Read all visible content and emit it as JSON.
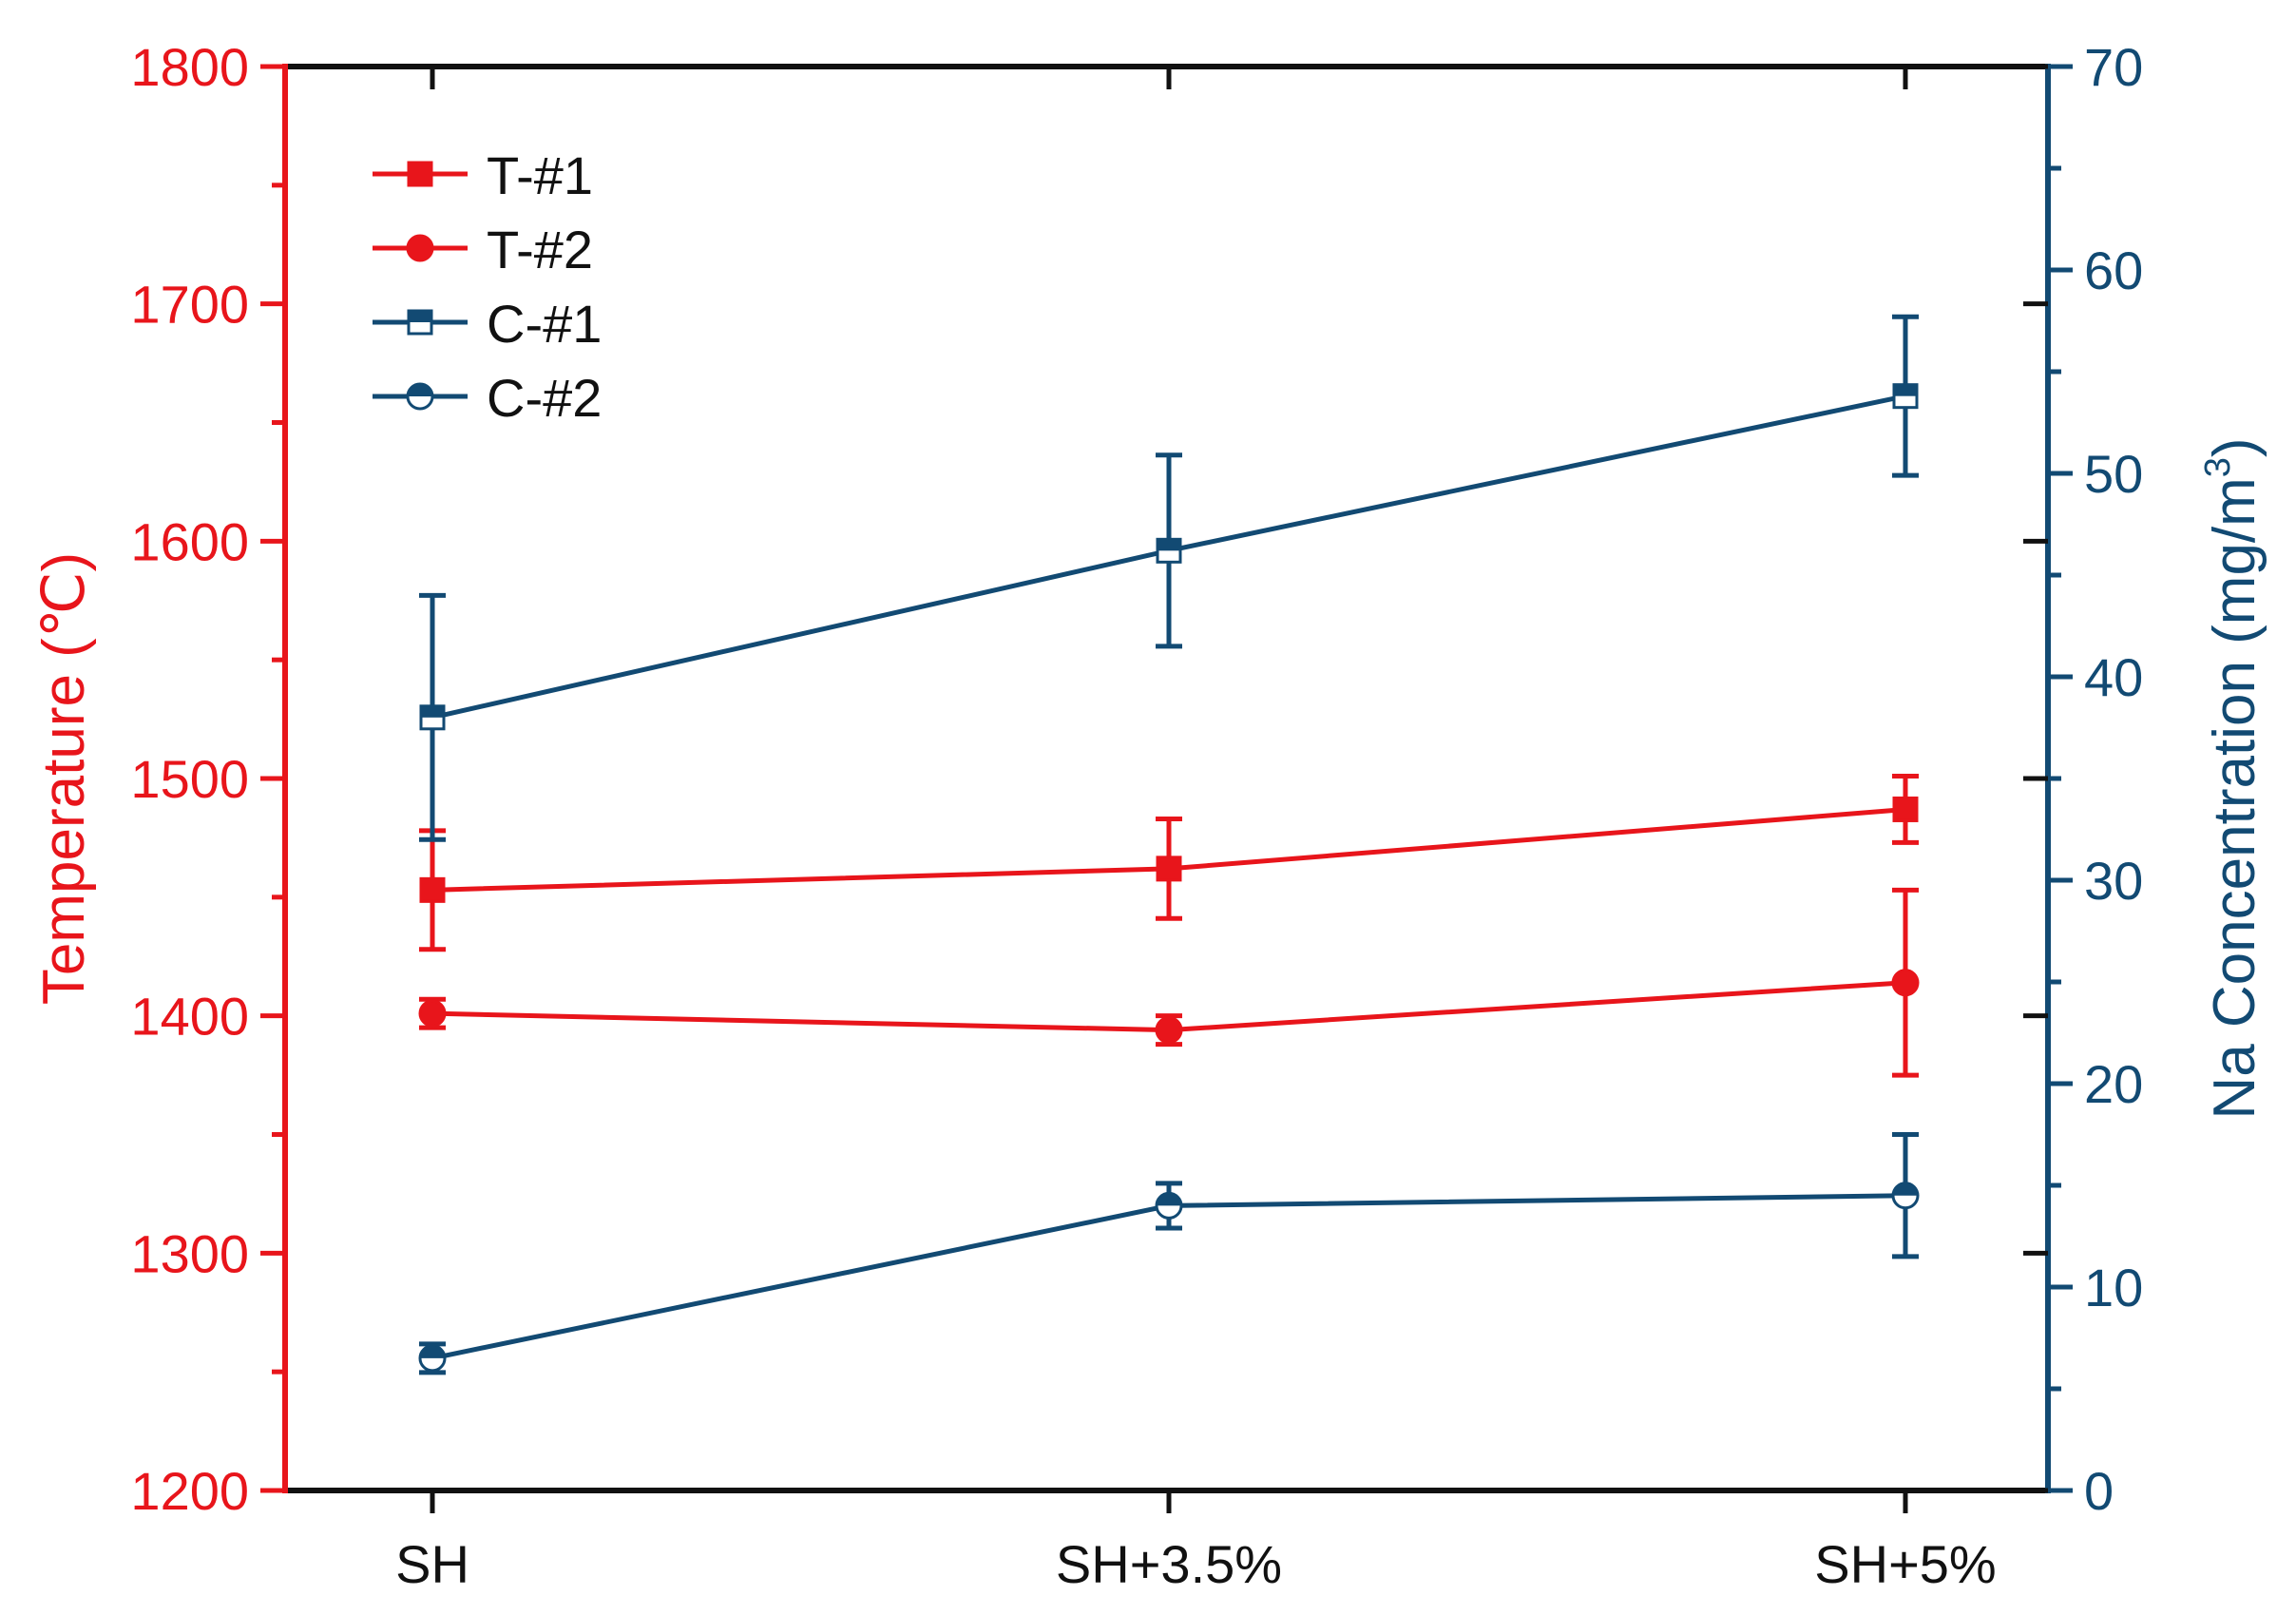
{
  "chart_data": {
    "type": "line",
    "title": "",
    "categories": [
      "SH",
      "SH+3.5%",
      "SH+5%"
    ],
    "left_axis": {
      "label": "Temperature (℃)",
      "ylim": [
        1200,
        1800
      ],
      "ticks": [
        1200,
        1300,
        1400,
        1500,
        1600,
        1700,
        1800
      ],
      "tick_labels": [
        "1200",
        "1300",
        "1400",
        "1500",
        "1600",
        "1700",
        "1800"
      ],
      "color": "#e8151b"
    },
    "right_axis": {
      "label_main": "Na Concentration (mg/m",
      "label_sup": "3",
      "label_end": ")",
      "ylim": [
        0,
        70
      ],
      "ticks": [
        0,
        10,
        20,
        30,
        40,
        50,
        60,
        70
      ],
      "tick_labels": [
        "0",
        "10",
        "20",
        "30",
        "40",
        "50",
        "60",
        "70"
      ],
      "color": "#124a73"
    },
    "series": [
      {
        "name": "T-#1",
        "axis": "left",
        "marker": "square",
        "color": "#e8151b",
        "values": [
          1453,
          1462,
          1487
        ],
        "errors": [
          25,
          21,
          14
        ]
      },
      {
        "name": "T-#2",
        "axis": "left",
        "marker": "circle",
        "color": "#e8151b",
        "values": [
          1401,
          1394,
          1414
        ],
        "errors": [
          6,
          6,
          39
        ]
      },
      {
        "name": "C-#1",
        "axis": "right",
        "marker": "square-half",
        "color": "#124a73",
        "values": [
          38,
          46.2,
          53.8
        ],
        "errors": [
          6,
          4.7,
          3.9
        ]
      },
      {
        "name": "C-#2",
        "axis": "right",
        "marker": "circle-half",
        "color": "#124a73",
        "values": [
          6.5,
          14,
          14.5
        ],
        "errors": [
          0.7,
          1.1,
          3
        ]
      }
    ],
    "legend_position": "top-left",
    "grid": false
  }
}
